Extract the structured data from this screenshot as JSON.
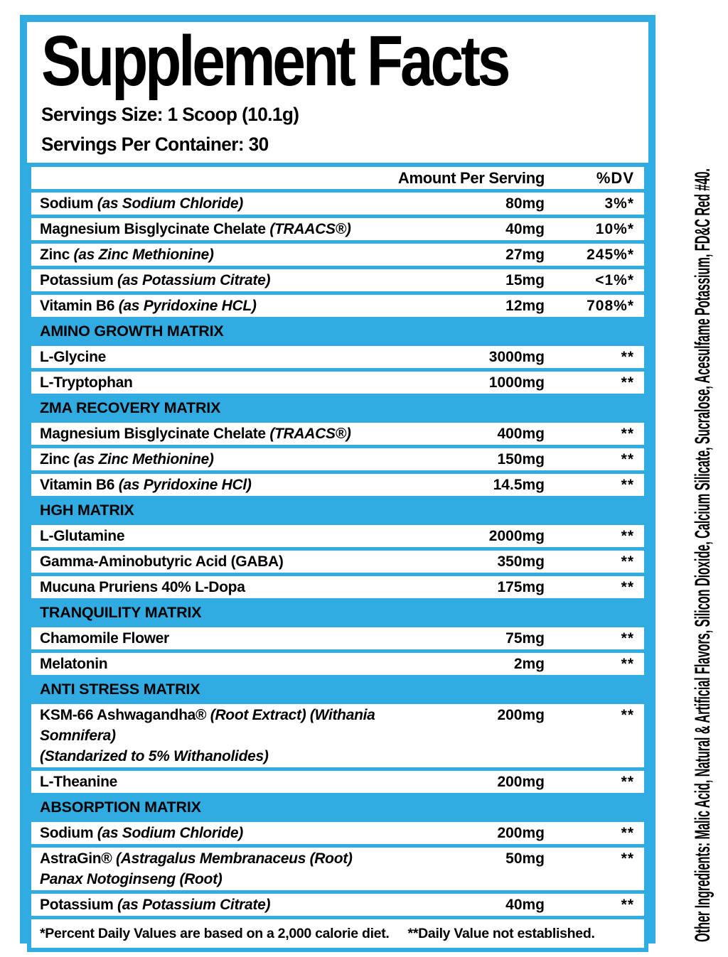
{
  "label": {
    "title": "Supplement Facts",
    "serving_size": "Servings Size: 1 Scoop (10.1g)",
    "servings_per_container": "Servings Per Container: 30",
    "columns": {
      "amount": "Amount Per Serving",
      "dv": "%DV"
    }
  },
  "rows": [
    {
      "type": "nutrient",
      "name": "Sodium",
      "detail": "(as Sodium Chloride)",
      "amount": "80mg",
      "dv": "3%*"
    },
    {
      "type": "nutrient",
      "name": "Magnesium Bisglycinate Chelate",
      "detail": "(TRAACS®)",
      "amount": "40mg",
      "dv": "10%*"
    },
    {
      "type": "nutrient",
      "name": "Zinc",
      "detail": "(as Zinc Methionine)",
      "amount": "27mg",
      "dv": "245%*"
    },
    {
      "type": "nutrient",
      "name": "Potassium",
      "detail": "(as Potassium Citrate)",
      "amount": "15mg",
      "dv": "<1%*"
    },
    {
      "type": "nutrient",
      "name": "Vitamin B6",
      "detail": "(as Pyridoxine HCL)",
      "amount": "12mg",
      "dv": "708%*"
    },
    {
      "type": "section",
      "label": "AMINO GROWTH MATRIX"
    },
    {
      "type": "nutrient",
      "name": "L-Glycine",
      "amount": "3000mg",
      "dv": "**"
    },
    {
      "type": "nutrient",
      "name": "L-Tryptophan",
      "amount": "1000mg",
      "dv": "**"
    },
    {
      "type": "section",
      "label": "ZMA RECOVERY MATRIX"
    },
    {
      "type": "nutrient",
      "name": "Magnesium Bisglycinate Chelate",
      "detail": "(TRAACS®)",
      "amount": "400mg",
      "dv": "**"
    },
    {
      "type": "nutrient",
      "name": "Zinc",
      "detail": "(as Zinc Methionine)",
      "amount": "150mg",
      "dv": "**"
    },
    {
      "type": "nutrient",
      "name": "Vitamin B6",
      "detail": "(as Pyridoxine HCl)",
      "amount": "14.5mg",
      "dv": "**"
    },
    {
      "type": "section",
      "label": "HGH MATRIX"
    },
    {
      "type": "nutrient",
      "name": "L-Glutamine",
      "amount": "2000mg",
      "dv": "**"
    },
    {
      "type": "nutrient",
      "name": "Gamma-Aminobutyric Acid (GABA)",
      "amount": "350mg",
      "dv": "**"
    },
    {
      "type": "nutrient",
      "name": "Mucuna Pruriens 40% L-Dopa",
      "amount": "175mg",
      "dv": "**"
    },
    {
      "type": "section",
      "label": "TRANQUILITY MATRIX"
    },
    {
      "type": "nutrient",
      "name": "Chamomile Flower",
      "amount": "75mg",
      "dv": "**"
    },
    {
      "type": "nutrient",
      "name": "Melatonin",
      "amount": "2mg",
      "dv": "**"
    },
    {
      "type": "section",
      "label": "ANTI STRESS MATRIX"
    },
    {
      "type": "nutrient",
      "name": "KSM-66 Ashwagandha®",
      "detail": "(Root Extract) (Withania Somnifera)",
      "detail2": "(Standarized to 5% Withanolides)",
      "amount": "200mg",
      "dv": "**"
    },
    {
      "type": "nutrient",
      "name": "L-Theanine",
      "amount": "200mg",
      "dv": "**"
    },
    {
      "type": "section",
      "label": "ABSORPTION MATRIX"
    },
    {
      "type": "nutrient",
      "name": "Sodium",
      "detail": "(as Sodium Chloride)",
      "amount": "200mg",
      "dv": "**"
    },
    {
      "type": "nutrient",
      "name": "AstraGin®",
      "detail": "(Astragalus Membranaceus (Root)",
      "detail2": "Panax Notoginseng (Root)",
      "amount": "50mg",
      "dv": "**"
    },
    {
      "type": "nutrient",
      "name": "Potassium",
      "detail": "(as Potassium Citrate)",
      "amount": "40mg",
      "dv": "**"
    }
  ],
  "footnotes": {
    "daily_values": "*Percent Daily Values are based on a 2,000 calorie diet.",
    "not_established": "**Daily Value not established."
  },
  "other_ingredients": "Other Ingredients: Malic Acid, Natural & Artificial Flavors, Silicon Dioxide, Calcium Silicate, Sucralose, Acesulfame Potassium, FD&C Red #40.",
  "colors": {
    "accent_cyan": "#31ACE2",
    "text": "#000000",
    "background": "#FFFFFF"
  }
}
